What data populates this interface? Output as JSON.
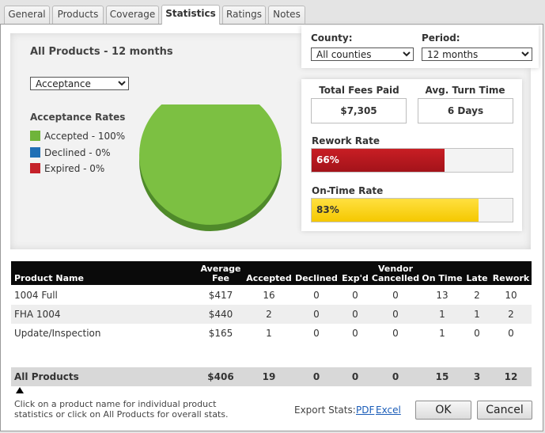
{
  "tabs": [
    {
      "label": "General"
    },
    {
      "label": "Products"
    },
    {
      "label": "Coverage"
    },
    {
      "label": "Statistics"
    },
    {
      "label": "Ratings"
    },
    {
      "label": "Notes"
    }
  ],
  "active_tab": "Statistics",
  "summary": {
    "title": "All Products - 12 months",
    "metric_select": "Acceptance",
    "legend_title": "Acceptance Rates",
    "legend": [
      {
        "label": "Accepted - 100%",
        "color": "#6fb43a",
        "value": 100
      },
      {
        "label": "Declined - 0%",
        "color": "#1f6fb5",
        "value": 0
      },
      {
        "label": "Expired - 0%",
        "color": "#c5222a",
        "value": 0
      }
    ],
    "pie_color": "#7cc042",
    "pie_shadow": "#4f8a2a"
  },
  "filters": {
    "county_label": "County:",
    "county_value": "All counties",
    "period_label": "Period:",
    "period_value": "12 months"
  },
  "metrics": {
    "fees_label": "Total Fees Paid",
    "fees_value": "$7,305",
    "turn_label": "Avg. Turn Time",
    "turn_value": "6 Days",
    "rework_label": "Rework Rate",
    "rework_text": "66%",
    "rework_fraction": 0.66,
    "rework_color": "#b5161c",
    "ontime_label": "On-Time Rate",
    "ontime_text": "83%",
    "ontime_fraction": 0.83,
    "ontime_color": "#ffd200"
  },
  "table": {
    "headers": {
      "product": "Product Name",
      "fee_top": "Average",
      "fee": "Fee",
      "accepted": "Accepted",
      "declined": "Declined",
      "expd": "Exp'd",
      "vendor_top": "Vendor",
      "cancelled": "Cancelled",
      "ontime": "On Time",
      "late": "Late",
      "rework": "Rework"
    },
    "rows": [
      {
        "name": "1004 Full",
        "fee": "$417",
        "accepted": "16",
        "declined": "0",
        "expd": "0",
        "cancelled": "0",
        "ontime": "13",
        "late": "2",
        "rework": "10"
      },
      {
        "name": "FHA 1004",
        "fee": "$440",
        "accepted": "2",
        "declined": "0",
        "expd": "0",
        "cancelled": "0",
        "ontime": "1",
        "late": "1",
        "rework": "2"
      },
      {
        "name": "Update/Inspection",
        "fee": "$165",
        "accepted": "1",
        "declined": "0",
        "expd": "0",
        "cancelled": "0",
        "ontime": "1",
        "late": "0",
        "rework": "0"
      }
    ],
    "total": {
      "name": "All Products",
      "fee": "$406",
      "accepted": "19",
      "declined": "0",
      "expd": "0",
      "cancelled": "0",
      "ontime": "15",
      "late": "3",
      "rework": "12"
    }
  },
  "footer": {
    "hint_line1": "Click on a product name for individual product",
    "hint_line2": "statistics or click on All Products for overall stats.",
    "export_label": "Export Stats:",
    "pdf_label": "PDF",
    "excel_label": "Excel",
    "ok_label": "OK",
    "cancel_label": "Cancel"
  }
}
